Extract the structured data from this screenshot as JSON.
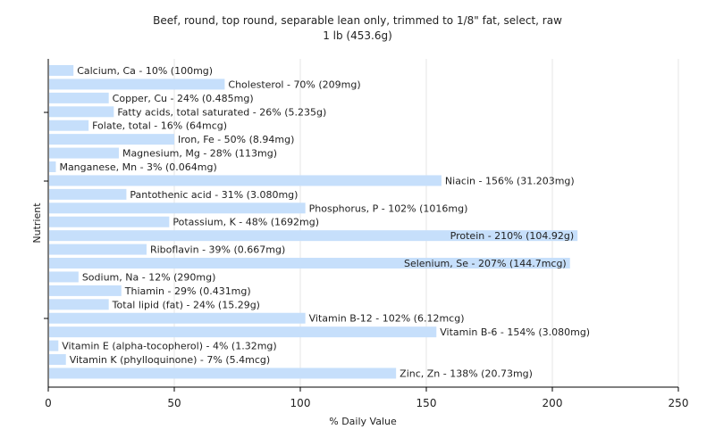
{
  "chart_data": {
    "type": "bar",
    "orientation": "horizontal",
    "title": "Beef, round, top round, separable lean only, trimmed to 1/8\" fat, select, raw",
    "subtitle": "1 lb (453.6g)",
    "xlabel": "% Daily Value",
    "ylabel": "Nutrient",
    "xlim": [
      0,
      250
    ],
    "xticks": [
      0,
      50,
      100,
      150,
      200,
      250
    ],
    "grid": true,
    "bar_color": "#c6dffb",
    "categories": [
      "Calcium, Ca",
      "Cholesterol",
      "Copper, Cu",
      "Fatty acids, total saturated",
      "Folate, total",
      "Iron, Fe",
      "Magnesium, Mg",
      "Manganese, Mn",
      "Niacin",
      "Pantothenic acid",
      "Phosphorus, P",
      "Potassium, K",
      "Protein",
      "Riboflavin",
      "Selenium, Se",
      "Sodium, Na",
      "Thiamin",
      "Total lipid (fat)",
      "Vitamin B-12",
      "Vitamin B-6",
      "Vitamin E (alpha-tocopherol)",
      "Vitamin K (phylloquinone)",
      "Zinc, Zn"
    ],
    "values": [
      10,
      70,
      24,
      26,
      16,
      50,
      28,
      3,
      156,
      31,
      102,
      48,
      210,
      39,
      207,
      12,
      29,
      24,
      102,
      154,
      4,
      7,
      138
    ],
    "labels": [
      "Calcium, Ca - 10% (100mg)",
      "Cholesterol - 70% (209mg)",
      "Copper, Cu - 24% (0.485mg)",
      "Fatty acids, total saturated - 26% (5.235g)",
      "Folate, total - 16% (64mcg)",
      "Iron, Fe - 50% (8.94mg)",
      "Magnesium, Mg - 28% (113mg)",
      "Manganese, Mn - 3% (0.064mg)",
      "Niacin - 156% (31.203mg)",
      "Pantothenic acid - 31% (3.080mg)",
      "Phosphorus, P - 102% (1016mg)",
      "Potassium, K - 48% (1692mg)",
      "Protein - 210% (104.92g)",
      "Riboflavin - 39% (0.667mg)",
      "Selenium, Se - 207% (144.7mcg)",
      "Sodium, Na - 12% (290mg)",
      "Thiamin - 29% (0.431mg)",
      "Total lipid (fat) - 24% (15.29g)",
      "Vitamin B-12 - 102% (6.12mcg)",
      "Vitamin B-6 - 154% (3.080mg)",
      "Vitamin E (alpha-tocopherol) - 4% (1.32mg)",
      "Vitamin K (phylloquinone) - 7% (5.4mcg)",
      "Zinc, Zn - 138% (20.73mg)"
    ]
  }
}
